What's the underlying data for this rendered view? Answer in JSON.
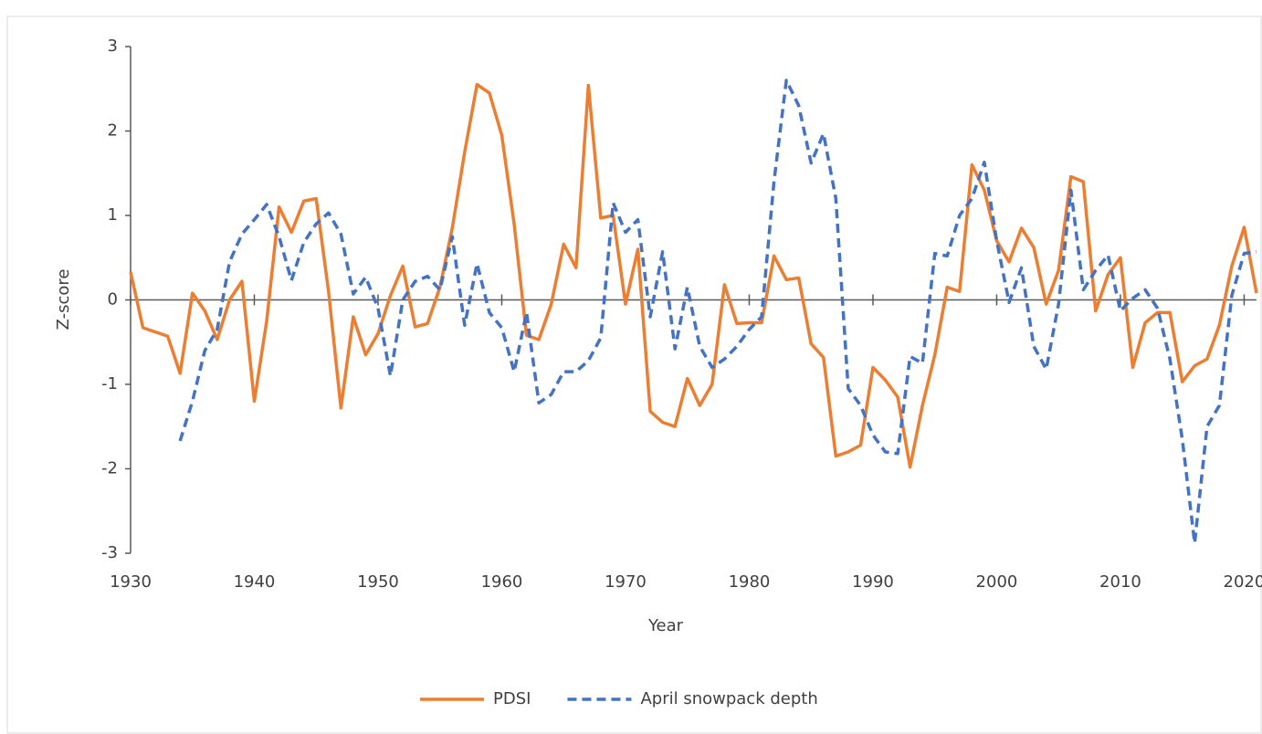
{
  "chart_data": {
    "type": "line",
    "x_label": "Year",
    "y_label": "Z-score",
    "x": [
      1930,
      1931,
      1932,
      1933,
      1934,
      1935,
      1936,
      1937,
      1938,
      1939,
      1940,
      1941,
      1942,
      1943,
      1944,
      1945,
      1946,
      1947,
      1948,
      1949,
      1950,
      1951,
      1952,
      1953,
      1954,
      1955,
      1956,
      1957,
      1958,
      1959,
      1960,
      1961,
      1962,
      1963,
      1964,
      1965,
      1966,
      1967,
      1968,
      1969,
      1970,
      1971,
      1972,
      1973,
      1974,
      1975,
      1976,
      1977,
      1978,
      1979,
      1980,
      1981,
      1982,
      1983,
      1984,
      1985,
      1986,
      1987,
      1988,
      1989,
      1990,
      1991,
      1992,
      1993,
      1994,
      1995,
      1996,
      1997,
      1998,
      1999,
      2000,
      2001,
      2002,
      2003,
      2004,
      2005,
      2006,
      2007,
      2008,
      2009,
      2010,
      2011,
      2012,
      2013,
      2014,
      2015,
      2016,
      2017,
      2018,
      2019,
      2020,
      2021
    ],
    "series": [
      {
        "name": "PDSI",
        "color": "#ed7d31",
        "dash": false,
        "values": [
          0.33,
          -0.33,
          -0.38,
          -0.43,
          -0.87,
          0.08,
          -0.13,
          -0.47,
          0.0,
          0.22,
          -1.2,
          -0.25,
          1.1,
          0.8,
          1.17,
          1.2,
          0.1,
          -1.28,
          -0.2,
          -0.65,
          -0.4,
          0.05,
          0.4,
          -0.32,
          -0.28,
          0.15,
          0.85,
          1.75,
          2.55,
          2.45,
          1.95,
          0.9,
          -0.42,
          -0.47,
          -0.05,
          0.66,
          0.38,
          2.54,
          0.97,
          1.0,
          -0.05,
          0.6,
          -1.32,
          -1.45,
          -1.5,
          -0.93,
          -1.25,
          -1.0,
          0.18,
          -0.28,
          -0.27,
          -0.27,
          0.52,
          0.24,
          0.26,
          -0.52,
          -0.68,
          -1.85,
          -1.8,
          -1.72,
          -0.8,
          -0.95,
          -1.15,
          -1.98,
          -1.25,
          -0.65,
          0.15,
          0.1,
          1.6,
          1.3,
          0.7,
          0.45,
          0.85,
          0.62,
          -0.05,
          0.35,
          1.46,
          1.4,
          -0.13,
          0.3,
          0.5,
          -0.8,
          -0.27,
          -0.15,
          -0.15,
          -0.97,
          -0.78,
          -0.7,
          -0.3,
          0.4,
          0.86,
          0.08
        ]
      },
      {
        "name": "April snowpack depth",
        "color": "#4472c4",
        "dash": true,
        "values": [
          null,
          null,
          null,
          null,
          -1.67,
          -1.2,
          -0.6,
          -0.35,
          0.45,
          0.78,
          0.95,
          1.13,
          0.75,
          0.23,
          0.68,
          0.9,
          1.03,
          0.78,
          0.07,
          0.27,
          -0.1,
          -0.9,
          0.0,
          0.22,
          0.28,
          0.12,
          0.75,
          -0.3,
          0.43,
          -0.15,
          -0.33,
          -0.85,
          -0.15,
          -1.22,
          -1.12,
          -0.85,
          -0.85,
          -0.72,
          -0.45,
          1.15,
          0.8,
          0.95,
          -0.2,
          0.57,
          -0.58,
          0.15,
          -0.55,
          -0.8,
          -0.7,
          -0.55,
          -0.35,
          -0.2,
          1.4,
          2.6,
          2.3,
          1.62,
          1.97,
          1.2,
          -1.05,
          -1.25,
          -1.6,
          -1.8,
          -1.82,
          -0.67,
          -0.75,
          0.55,
          0.52,
          1.0,
          1.2,
          1.63,
          0.7,
          -0.03,
          0.38,
          -0.55,
          -0.82,
          -0.05,
          1.3,
          0.12,
          0.35,
          0.53,
          -0.13,
          0.02,
          0.12,
          -0.1,
          -0.7,
          -1.65,
          -2.88,
          -1.5,
          -1.25,
          0.05,
          0.55,
          0.57
        ]
      }
    ],
    "xlim": [
      1930,
      2021
    ],
    "xticks": [
      1930,
      1940,
      1950,
      1960,
      1970,
      1980,
      1990,
      2000,
      2010,
      2020
    ],
    "ylim": [
      -3,
      3
    ],
    "yticks": [
      -3,
      -2,
      -1,
      0,
      1,
      2,
      3
    ],
    "grid": false,
    "legend": "bottom"
  }
}
